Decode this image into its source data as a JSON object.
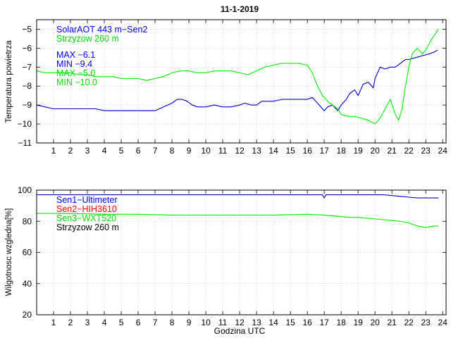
{
  "title": "11-1-2019",
  "chart_data": [
    {
      "type": "line",
      "ylabel": "Temperatura powietrza",
      "xlabel": "",
      "xlim": [
        0,
        24.2
      ],
      "ylim": [
        -11,
        -4.5
      ],
      "x_ticks": [
        1,
        2,
        3,
        4,
        5,
        6,
        7,
        8,
        9,
        10,
        11,
        12,
        13,
        14,
        15,
        16,
        17,
        18,
        19,
        20,
        21,
        22,
        23,
        24
      ],
      "y_ticks": [
        -11,
        -10,
        -9,
        -8,
        -7,
        -6,
        -5
      ],
      "grid": true,
      "legend": [
        {
          "text": "SolarAOT 443 m−Sen2",
          "color": "#0000ff"
        },
        {
          "text": "Strzyzow 260 m",
          "color": "#00dd00"
        }
      ],
      "stats": [
        {
          "text": "MAX −6.1",
          "color": "#0000ff"
        },
        {
          "text": "MIN −9.4",
          "color": "#0000ff"
        },
        {
          "text": "MAX −5.0",
          "color": "#00dd00"
        },
        {
          "text": "MIN −10.0",
          "color": "#00dd00"
        }
      ],
      "series": [
        {
          "name": "SolarAOT 443 m−Sen2",
          "color": "#0000cc",
          "x": [
            0.0,
            0.5,
            1.0,
            1.5,
            2.0,
            2.5,
            3.0,
            3.5,
            4.0,
            4.5,
            5.0,
            5.5,
            6.0,
            6.5,
            7.0,
            7.5,
            8.0,
            8.3,
            8.6,
            8.9,
            9.2,
            9.5,
            10.0,
            10.5,
            11.0,
            11.5,
            12.0,
            12.3,
            12.7,
            13.0,
            13.3,
            13.7,
            14.0,
            14.5,
            15.0,
            15.5,
            16.0,
            16.3,
            16.6,
            16.8,
            17.0,
            17.2,
            17.5,
            17.8,
            18.0,
            18.3,
            18.5,
            18.8,
            19.0,
            19.3,
            19.6,
            19.9,
            20.0,
            20.3,
            20.6,
            20.9,
            21.2,
            21.5,
            21.8,
            22.0,
            22.4,
            22.8,
            23.2,
            23.5,
            23.7
          ],
          "values": [
            -9.0,
            -9.1,
            -9.2,
            -9.2,
            -9.2,
            -9.2,
            -9.2,
            -9.2,
            -9.3,
            -9.3,
            -9.3,
            -9.3,
            -9.3,
            -9.3,
            -9.3,
            -9.1,
            -8.9,
            -8.7,
            -8.7,
            -8.8,
            -9.0,
            -9.1,
            -9.1,
            -9.0,
            -9.1,
            -9.1,
            -9.0,
            -8.9,
            -9.0,
            -9.0,
            -8.8,
            -8.8,
            -8.8,
            -8.7,
            -8.7,
            -8.7,
            -8.7,
            -8.6,
            -8.9,
            -9.1,
            -9.3,
            -9.1,
            -9.0,
            -9.3,
            -9.0,
            -8.7,
            -8.4,
            -8.2,
            -8.5,
            -7.9,
            -7.8,
            -8.1,
            -7.6,
            -7.0,
            -7.1,
            -7.0,
            -7.0,
            -6.8,
            -6.6,
            -6.6,
            -6.5,
            -6.4,
            -6.3,
            -6.2,
            -6.1
          ]
        },
        {
          "name": "Strzyzow 260 m",
          "color": "#00ee00",
          "x": [
            0.0,
            0.5,
            1.0,
            1.5,
            2.0,
            2.5,
            3.0,
            3.5,
            4.0,
            4.5,
            5.0,
            5.5,
            6.0,
            6.5,
            7.0,
            7.5,
            8.0,
            8.5,
            9.0,
            9.5,
            10.0,
            10.5,
            11.0,
            11.5,
            12.0,
            12.5,
            13.0,
            13.5,
            14.0,
            14.5,
            15.0,
            15.5,
            16.0,
            16.3,
            16.6,
            16.9,
            17.2,
            17.5,
            17.8,
            18.0,
            18.4,
            18.8,
            19.2,
            19.6,
            20.0,
            20.3,
            20.6,
            20.9,
            21.2,
            21.4,
            21.6,
            21.8,
            22.0,
            22.2,
            22.5,
            22.8,
            23.0,
            23.3,
            23.6,
            23.75
          ],
          "values": [
            -7.2,
            -7.3,
            -7.3,
            -7.3,
            -7.3,
            -7.4,
            -7.4,
            -7.5,
            -7.5,
            -7.5,
            -7.6,
            -7.6,
            -7.6,
            -7.7,
            -7.6,
            -7.5,
            -7.3,
            -7.2,
            -7.2,
            -7.3,
            -7.3,
            -7.2,
            -7.2,
            -7.2,
            -7.3,
            -7.4,
            -7.2,
            -7.0,
            -6.9,
            -6.8,
            -6.8,
            -6.8,
            -6.9,
            -7.3,
            -8.0,
            -8.5,
            -8.8,
            -9.0,
            -9.2,
            -9.5,
            -9.6,
            -9.6,
            -9.7,
            -9.8,
            -10.0,
            -9.7,
            -9.2,
            -8.7,
            -9.5,
            -9.8,
            -9.2,
            -8.0,
            -7.0,
            -6.3,
            -6.0,
            -6.3,
            -6.1,
            -5.6,
            -5.2,
            -5.0
          ]
        }
      ]
    },
    {
      "type": "line",
      "ylabel": "Wilgotnosc wzgledna[%]",
      "xlabel": "Godzina UTC",
      "xlim": [
        0,
        24.2
      ],
      "ylim": [
        20,
        100
      ],
      "x_ticks": [
        1,
        2,
        3,
        4,
        5,
        6,
        7,
        8,
        9,
        10,
        11,
        12,
        13,
        14,
        15,
        16,
        17,
        18,
        19,
        20,
        21,
        22,
        23,
        24
      ],
      "y_ticks": [
        20,
        40,
        60,
        80,
        100
      ],
      "grid": true,
      "legend": [
        {
          "text": "Sen1−Ultimeter",
          "color": "#0000ff"
        },
        {
          "text": "Sen2−HIH3610",
          "color": "#ff0000"
        },
        {
          "text": "Sen3−WXT520",
          "color": "#00dd00"
        },
        {
          "text": "Strzyzow 260 m",
          "color": "#000000"
        }
      ],
      "series": [
        {
          "name": "Sen1−Ultimeter",
          "color": "#0000cc",
          "x": [
            0.0,
            2.0,
            4.0,
            6.0,
            8.0,
            10.0,
            12.0,
            14.0,
            16.0,
            16.9,
            17.0,
            17.1,
            17.3,
            18.0,
            19.0,
            20.0,
            20.5,
            21.0,
            21.5,
            22.0,
            22.5,
            23.0,
            23.5,
            23.75
          ],
          "values": [
            97,
            97,
            97,
            97,
            97,
            97,
            97,
            97,
            97,
            97,
            95,
            97,
            97,
            97,
            97,
            97,
            97,
            96.5,
            96,
            95.5,
            95,
            95,
            95,
            95
          ]
        },
        {
          "name": "Sen3−WXT520",
          "color": "#00ee00",
          "x": [
            0.0,
            2.0,
            4.0,
            6.0,
            8.0,
            10.0,
            12.0,
            14.0,
            16.0,
            17.0,
            18.0,
            18.5,
            19.0,
            19.5,
            20.0,
            20.5,
            21.0,
            21.5,
            22.0,
            22.5,
            23.0,
            23.5,
            23.75
          ],
          "values": [
            85,
            85,
            84.5,
            84.5,
            84,
            84,
            84,
            84,
            84.5,
            84,
            83,
            82.5,
            82.5,
            82,
            81.5,
            81,
            80.5,
            80,
            79,
            77,
            76,
            77,
            77
          ]
        }
      ]
    }
  ]
}
